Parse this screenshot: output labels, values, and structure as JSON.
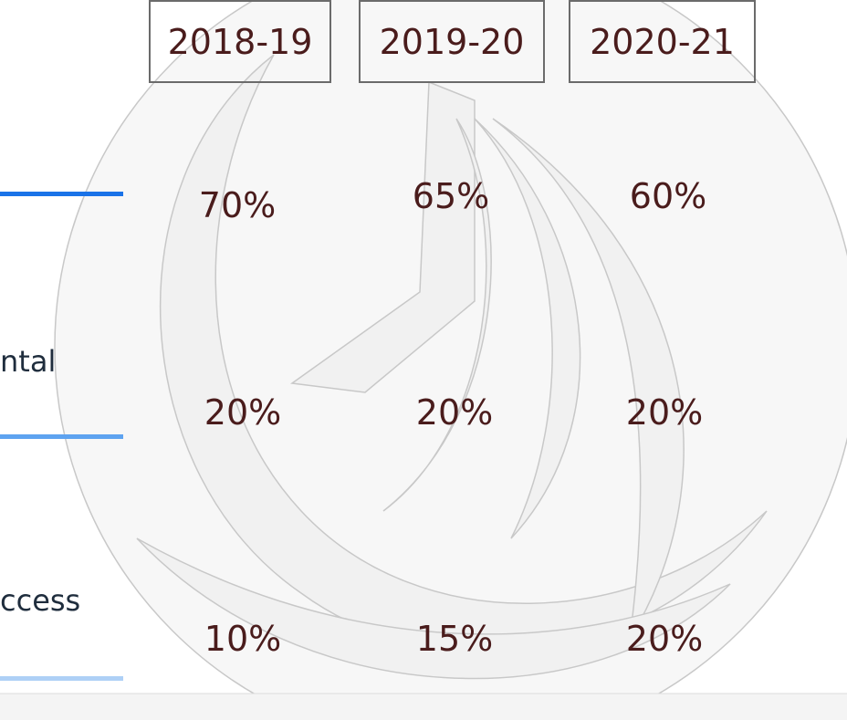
{
  "table": {
    "headers": [
      "2018-19",
      "2019-20",
      "2020-21"
    ],
    "rows": [
      {
        "cells": [
          "70%",
          "65%",
          "60%"
        ]
      },
      {
        "label": "ntal",
        "cells": [
          "20%",
          "20%",
          "20%"
        ]
      },
      {
        "label": "ccess",
        "cells": [
          "10%",
          "15%",
          "20%"
        ]
      }
    ]
  }
}
